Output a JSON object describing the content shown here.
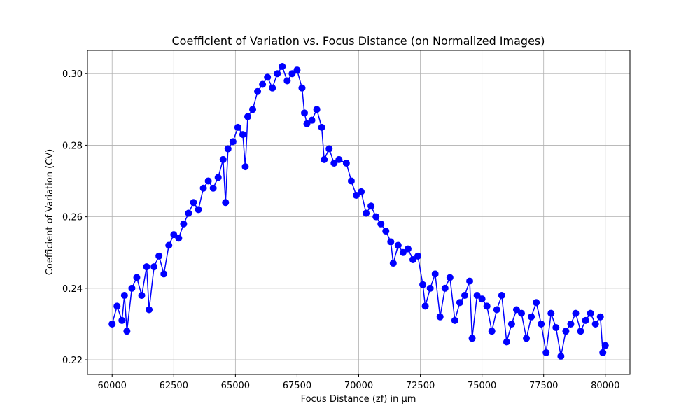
{
  "chart_data": {
    "type": "line",
    "title": "Coefficient of Variation vs. Focus Distance (on Normalized Images)",
    "x_label": "Focus Distance (zf) in µm",
    "y_label": "Coefficient of Variation (CV)",
    "x": [
      60000,
      60200,
      60400,
      60500,
      60600,
      60800,
      61000,
      61200,
      61400,
      61500,
      61700,
      61900,
      62100,
      62300,
      62500,
      62700,
      62900,
      63100,
      63300,
      63500,
      63700,
      63900,
      64100,
      64300,
      64500,
      64600,
      64700,
      64900,
      65100,
      65300,
      65400,
      65500,
      65700,
      65900,
      66100,
      66300,
      66500,
      66700,
      66900,
      67100,
      67300,
      67500,
      67700,
      67800,
      67900,
      68100,
      68300,
      68500,
      68600,
      68800,
      69000,
      69200,
      69500,
      69700,
      69900,
      70100,
      70300,
      70500,
      70700,
      70900,
      71100,
      71300,
      71400,
      71600,
      71800,
      72000,
      72200,
      72400,
      72600,
      72700,
      72900,
      73100,
      73300,
      73500,
      73700,
      73900,
      74100,
      74300,
      74500,
      74600,
      74800,
      75000,
      75200,
      75400,
      75600,
      75800,
      76000,
      76200,
      76400,
      76600,
      76800,
      77000,
      77200,
      77400,
      77600,
      77800,
      78000,
      78200,
      78400,
      78600,
      78800,
      79000,
      79200,
      79400,
      79600,
      79800,
      79900,
      80000
    ],
    "series": [
      {
        "name": "CV",
        "color": "#0000ff",
        "values": [
          0.23,
          0.235,
          0.231,
          0.238,
          0.228,
          0.24,
          0.243,
          0.238,
          0.246,
          0.234,
          0.246,
          0.249,
          0.244,
          0.252,
          0.255,
          0.254,
          0.258,
          0.261,
          0.264,
          0.262,
          0.268,
          0.27,
          0.268,
          0.271,
          0.276,
          0.264,
          0.279,
          0.281,
          0.285,
          0.283,
          0.274,
          0.288,
          0.29,
          0.295,
          0.297,
          0.299,
          0.296,
          0.3,
          0.302,
          0.298,
          0.3,
          0.301,
          0.296,
          0.289,
          0.286,
          0.287,
          0.29,
          0.285,
          0.276,
          0.279,
          0.275,
          0.276,
          0.275,
          0.27,
          0.266,
          0.267,
          0.261,
          0.263,
          0.26,
          0.258,
          0.256,
          0.253,
          0.247,
          0.252,
          0.25,
          0.251,
          0.248,
          0.249,
          0.241,
          0.235,
          0.24,
          0.244,
          0.232,
          0.24,
          0.243,
          0.231,
          0.236,
          0.238,
          0.242,
          0.226,
          0.238,
          0.237,
          0.235,
          0.228,
          0.234,
          0.238,
          0.225,
          0.23,
          0.234,
          0.233,
          0.226,
          0.232,
          0.236,
          0.23,
          0.222,
          0.233,
          0.229,
          0.221,
          0.228,
          0.23,
          0.233,
          0.228,
          0.231,
          0.233,
          0.23,
          0.232,
          0.222,
          0.224
        ]
      }
    ],
    "xlim": [
      59000,
      81000
    ],
    "ylim": [
      0.2159,
      0.3065
    ],
    "xticks": [
      60000,
      62500,
      65000,
      67500,
      70000,
      72500,
      75000,
      77500,
      80000
    ],
    "yticks": [
      0.22,
      0.24,
      0.26,
      0.28,
      {
        "value": 0.3,
        "label": "0.30"
      }
    ],
    "grid": true
  }
}
